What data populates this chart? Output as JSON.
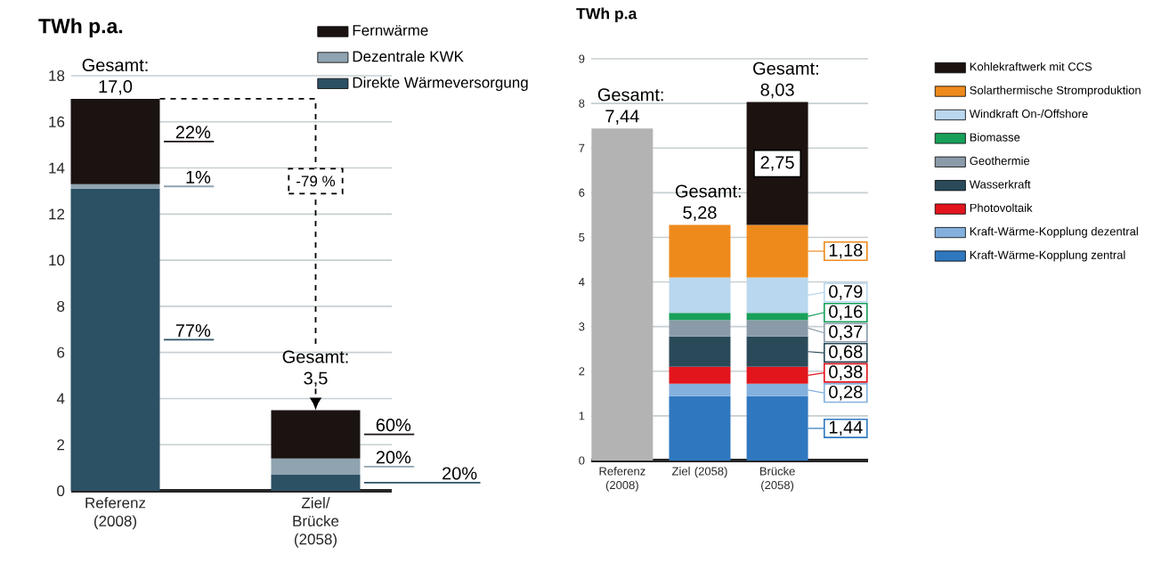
{
  "chart_data": [
    {
      "type": "bar",
      "stacked": true,
      "ylabel": "TWh p.a.",
      "categories": [
        "Referenz (2008)",
        "Ziel/ Brücke (2058)"
      ],
      "series": [
        {
          "name": "Direkte Wärmeversorgung",
          "color": "#2c5064",
          "values": [
            13.1,
            0.7
          ]
        },
        {
          "name": "Dezentrale KWK",
          "color": "#8fa3b1",
          "values": [
            0.2,
            0.7
          ]
        },
        {
          "name": "Fernwärme",
          "color": "#1a1311",
          "values": [
            3.7,
            2.1
          ]
        }
      ],
      "totals": [
        "Gesamt: 17,0",
        "Gesamt: 3,5"
      ],
      "annotations": [
        "-79 %",
        "22%",
        "1%",
        "77%",
        "60%",
        "20%",
        "20%"
      ],
      "ylim": [
        0,
        18
      ],
      "yticks": [
        0,
        2,
        4,
        6,
        8,
        10,
        12,
        14,
        16,
        18
      ],
      "grid": "y",
      "legend": "top right"
    },
    {
      "type": "bar",
      "stacked": true,
      "ylabel": "TWh p.a",
      "categories": [
        "Referenz (2008)",
        "Ziel (2058)",
        "Brücke (2058)"
      ],
      "series": [
        {
          "color": "#b3b3b3",
          "values": [
            7.44,
            null,
            null
          ]
        },
        {
          "name": "Kraft-Wärme-Kopplung zentral",
          "color": "#2f78bf",
          "values": [
            null,
            1.44,
            1.44
          ],
          "value_labels": [
            null,
            null,
            "1,44"
          ]
        },
        {
          "name": "Kraft-Wärme-Kopplung dezentral",
          "color": "#84b0dd",
          "values": [
            null,
            0.28,
            0.28
          ],
          "value_labels": [
            null,
            null,
            "0,28"
          ]
        },
        {
          "name": "Photovoltaik",
          "color": "#e2151d",
          "values": [
            null,
            0.38,
            0.38
          ],
          "value_labels": [
            null,
            null,
            "0,38"
          ]
        },
        {
          "name": "Wasserkraft",
          "color": "#2a4a5a",
          "values": [
            null,
            0.68,
            0.68
          ],
          "value_labels": [
            null,
            null,
            "0,68"
          ]
        },
        {
          "name": "Geothermie",
          "color": "#8a9aa8",
          "values": [
            null,
            0.37,
            0.37
          ],
          "value_labels": [
            null,
            null,
            "0,37"
          ]
        },
        {
          "name": "Biomasse",
          "color": "#18a05a",
          "values": [
            null,
            0.16,
            0.16
          ],
          "value_labels": [
            null,
            null,
            "0,16"
          ]
        },
        {
          "name": "Windkraft On-/Offshore",
          "color": "#b9d7ee",
          "values": [
            null,
            0.79,
            0.79
          ],
          "value_labels": [
            null,
            null,
            "0,79"
          ]
        },
        {
          "name": "Solarthermische Stromproduktion",
          "color": "#ee8a1c",
          "values": [
            null,
            1.18,
            1.18
          ],
          "value_labels": [
            null,
            null,
            "1,18"
          ]
        },
        {
          "name": "Kohlekraftwerk mit CCS",
          "color": "#1c1311",
          "values": [
            null,
            null,
            2.75
          ],
          "value_labels": [
            null,
            null,
            "2,75"
          ]
        }
      ],
      "totals": [
        "Gesamt: 7,44",
        "Gesamt: 5,28",
        "Gesamt: 8,03"
      ],
      "ylim": [
        0,
        9
      ],
      "yticks": [
        0,
        1,
        2,
        3,
        4,
        5,
        6,
        7,
        8,
        9
      ],
      "grid": "y",
      "legend": "right"
    }
  ]
}
